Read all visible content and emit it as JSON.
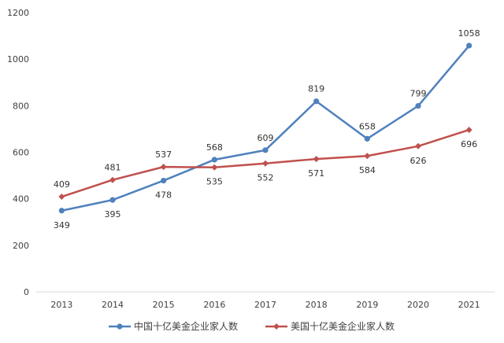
{
  "chart_data": {
    "type": "line",
    "title": "",
    "xlabel": "",
    "ylabel": "",
    "x": [
      "2013",
      "2014",
      "2015",
      "2016",
      "2017",
      "2018",
      "2019",
      "2020",
      "2021"
    ],
    "ylim": [
      0,
      1200
    ],
    "yticks": [
      "0",
      "200",
      "400",
      "600",
      "800",
      "1000",
      "1200"
    ],
    "grid": false,
    "legend": "bottom",
    "series": [
      {
        "name": "中国十亿美金企业家人数",
        "color": "#4F81BD",
        "marker": "circle",
        "values": [
          349,
          395,
          478,
          568,
          609,
          819,
          658,
          799,
          1058
        ],
        "labels": [
          "349",
          "395",
          "478",
          "568",
          "609",
          "819",
          "658",
          "799",
          "1058"
        ]
      },
      {
        "name": "美国十亿美金企业家人数",
        "color": "#C0504D",
        "marker": "diamond",
        "values": [
          409,
          481,
          537,
          535,
          552,
          571,
          584,
          626,
          696
        ],
        "labels": [
          "409",
          "481",
          "537",
          "535",
          "552",
          "571",
          "584",
          "626",
          "696"
        ]
      }
    ]
  }
}
